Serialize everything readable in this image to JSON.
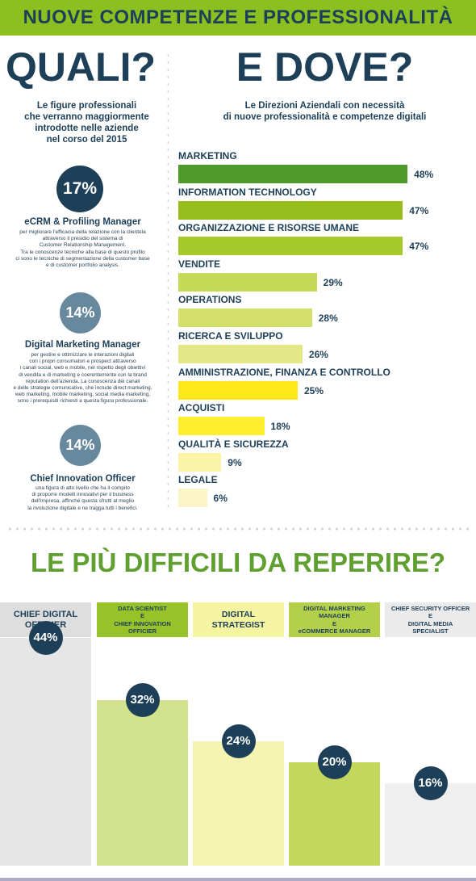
{
  "header": {
    "title": "NUOVE COMPETENZE E PROFESSIONALITÀ"
  },
  "quali": {
    "heading": "QUALI?",
    "subtitle": "Le figure professionali\nche verranno maggiormente\nintrodotte nelle aziende\nnel corso del 2015",
    "roles": [
      {
        "percent": "17%",
        "name": "eCRM & Profiling Manager",
        "description": "per migliorare l'efficacia della relazione con la clientela\nattraverso il presidio del sistema di\nCustomer Relationship Management.\nTra le conoscenze tecniche alla base di questo profilo\nci sono le tecniche di segmentazione della customer base\ne di customer portfolio analysis."
      },
      {
        "percent": "14%",
        "name": "Digital Marketing Manager",
        "description": "per gestire e ottimizzare le interazioni digitali\ncon i propri consumatori e prospect attraverso\ni canali social, web e mobile, nel rispetto degli obiettivi\ndi vendita e di marketing e coerentemente con la brand\nreputation dell'azienda. La conoscenza dei canali\ne delle strategie comunicative, che include direct marketing,\nweb marketing, mobile marketing, social media marketing,\nsono i prerequisiti richiesti a questa figura professionale."
      },
      {
        "percent": "14%",
        "name": "Chief Innovation Officer",
        "description": "una figura di alto livello che ha il compito\ndi proporre modelli innovativi per il business\ndell'impresa, affinché questa sfrutti al meglio\nla rivoluzione digitale e ne tragga tutti i benefici."
      }
    ]
  },
  "dove": {
    "heading": "E DOVE?",
    "subtitle": "Le Direzioni Aziendali con necessità\ndi nuove professionalità e competenze digitali"
  },
  "difficili": {
    "heading": "LE PIÙ DIFFICILI DA REPERIRE?"
  },
  "chart_data": [
    {
      "type": "bar",
      "orientation": "horizontal",
      "categories": [
        "MARKETING",
        "INFORMATION TECHNOLOGY",
        "ORGANIZZAZIONE E RISORSE UMANE",
        "VENDITE",
        "OPERATIONS",
        "RICERCA E SVILUPPO",
        "AMMINISTRAZIONE, FINANZA E CONTROLLO",
        "ACQUISTI",
        "QUALITÀ E SICUREZZA",
        "LEGALE"
      ],
      "values": [
        48,
        47,
        47,
        29,
        28,
        26,
        25,
        18,
        9,
        6
      ],
      "labels": [
        "48%",
        "47%",
        "47%",
        "29%",
        "28%",
        "26%",
        "25%",
        "18%",
        "9%",
        "6%"
      ],
      "colors": [
        "#4e9a2a",
        "#96bf1e",
        "#a5c82a",
        "#c6da5a",
        "#d2e06a",
        "#e3e788",
        "#ffe81a",
        "#ffee2e",
        "#fbf3a5",
        "#faf4c6"
      ],
      "grid": false
    },
    {
      "type": "bar",
      "orientation": "vertical",
      "categories": [
        "CHIEF DIGITAL\nOFFICIER",
        "DATA SCIENTIST\nE\nCHIEF INNOVATION\nOFFICIER",
        "DIGITAL\nSTRATEGIST",
        "DIGITAL MARKETING\nMANAGER\nE\neCOMMERCE MANAGER",
        "CHIEF SECURITY OFFICER\nE\nDIGITAL MEDIA\nSPECIALIST"
      ],
      "values": [
        44,
        32,
        24,
        20,
        16
      ],
      "labels": [
        "44%",
        "32%",
        "24%",
        "20%",
        "16%"
      ],
      "colors": [
        "#e6e6e6",
        "#d3e28c",
        "#f4f3b2",
        "#c3d75c",
        "#efefef"
      ],
      "header_colors": [
        "#dedede",
        "#98c22a",
        "#f5f4a0",
        "#b4cf4a",
        "#ebebeb"
      ],
      "grid": false
    }
  ]
}
